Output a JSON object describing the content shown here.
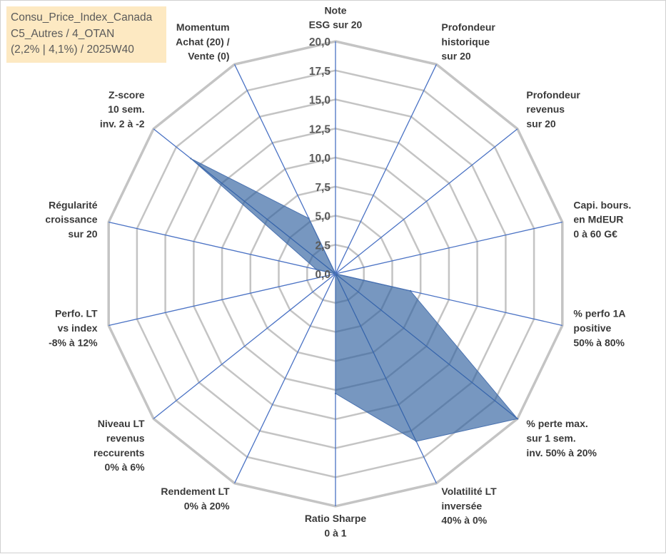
{
  "info": {
    "line1": "Consu_Price_Index_Canada",
    "line2": "C5_Autres / 4_OTAN",
    "line3": "(2,2% | 4,1%) / 2025W40"
  },
  "colors": {
    "series_fill": "#2e5f9e",
    "series_stroke": "#4a72b0",
    "grid": "#c4c4c4",
    "spoke": "#4a72c4",
    "info_bg": "#fde9c2"
  },
  "chart_data": {
    "type": "radar",
    "title": "",
    "rmin": 0,
    "rmax": 20,
    "tick_step": 2.5,
    "tick_labels": [
      "0,0",
      "2,5",
      "5,0",
      "7,5",
      "10,0",
      "12,5",
      "15,0",
      "17,5",
      "20,0"
    ],
    "axes": [
      {
        "key": "esg",
        "lines": [
          "Note",
          "ESG sur 20"
        ]
      },
      {
        "key": "profondeur-historique",
        "lines": [
          "Profondeur",
          "historique",
          "sur 20"
        ]
      },
      {
        "key": "profondeur-revenus",
        "lines": [
          "Profondeur",
          "revenus",
          "sur 20"
        ]
      },
      {
        "key": "capi-bours",
        "lines": [
          "Capi. bours.",
          "en MdEUR",
          "0 à 60 G€"
        ]
      },
      {
        "key": "perfo-1a",
        "lines": [
          "% perfo 1A",
          "positive",
          "50% à 80%"
        ]
      },
      {
        "key": "perte-max",
        "lines": [
          "% perte max.",
          "sur 1 sem.",
          "inv. 50% à 20%"
        ]
      },
      {
        "key": "volatilite-lt",
        "lines": [
          "Volatilité LT",
          "inversée",
          "40% à 0%"
        ]
      },
      {
        "key": "ratio-sharpe",
        "lines": [
          "Ratio Sharpe",
          "0 à 1"
        ]
      },
      {
        "key": "rendement-lt",
        "lines": [
          "Rendement LT",
          "0% à 20%"
        ]
      },
      {
        "key": "niveau-lt-revenus",
        "lines": [
          "Niveau LT",
          "revenus",
          "reccurents",
          "0% à 6%"
        ]
      },
      {
        "key": "perfo-lt-index",
        "lines": [
          "Perfo. LT",
          "vs index",
          "-8% à 12%"
        ]
      },
      {
        "key": "regularite-croissance",
        "lines": [
          "Régularité",
          "croissance",
          "sur 20"
        ]
      },
      {
        "key": "z-score",
        "lines": [
          "Z-score",
          "10 sem.",
          "inv. 2 à -2"
        ]
      },
      {
        "key": "momentum",
        "lines": [
          "Momentum",
          "Achat (20) /",
          "Vente (0)"
        ]
      }
    ],
    "series": [
      {
        "name": "Consu_Price_Index_Canada",
        "values": [
          0,
          0,
          0,
          0,
          6.6,
          20,
          16,
          10.3,
          0,
          0,
          0,
          1.7,
          15.9,
          5.3
        ]
      }
    ]
  }
}
